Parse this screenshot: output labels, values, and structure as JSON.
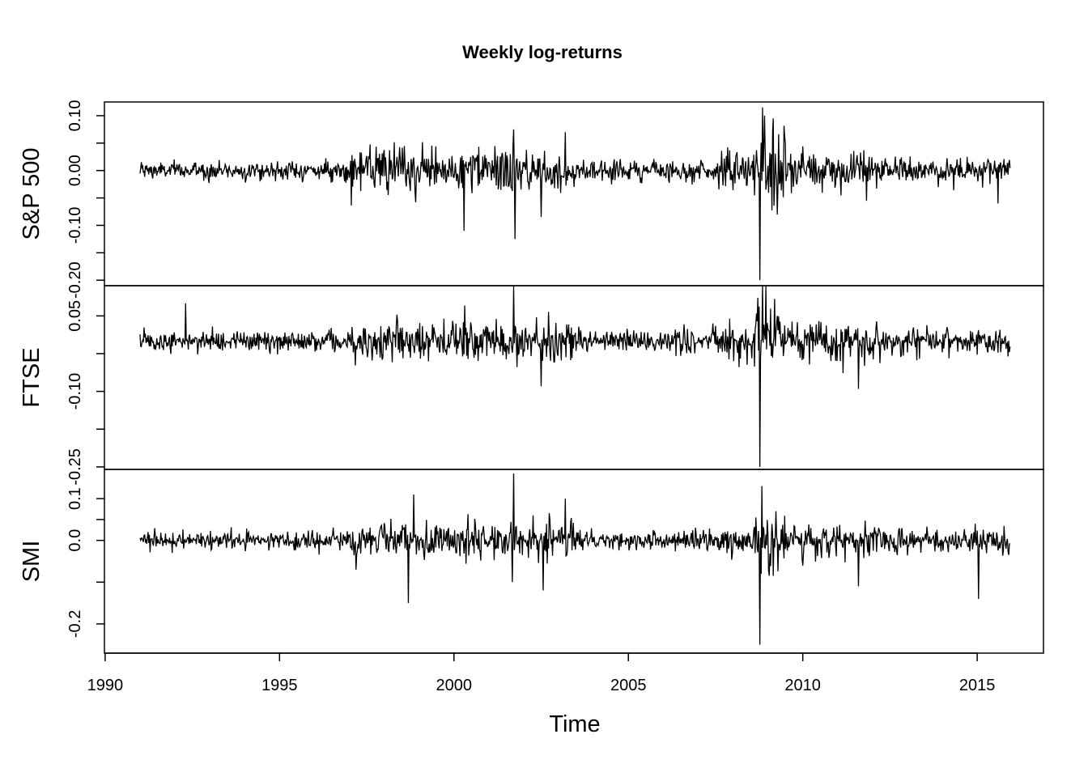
{
  "chart_data": {
    "type": "line",
    "title": "Weekly log-returns",
    "xlabel": "Time",
    "xlim": [
      1989.98,
      2016.9
    ],
    "x_ticks": [
      1990,
      1995,
      2000,
      2005,
      2010,
      2015
    ],
    "x_tick_labels": [
      "1990",
      "1995",
      "2000",
      "2005",
      "2010",
      "2015"
    ],
    "time_start": 1991.0,
    "time_end": 2015.95,
    "frequency": 52,
    "line_color": "#000000",
    "panels": [
      {
        "name": "S&P 500",
        "ylim": [
          -0.21,
          0.125
        ],
        "y_ticks": [
          0.1,
          0.0,
          -0.1,
          -0.2
        ],
        "y_tick_labels": [
          "0.10",
          "0.00",
          "-0.10",
          "-0.20"
        ],
        "baseline_vol": 0.012,
        "vol_regimes": [
          {
            "start": 1991.0,
            "end": 1997.0,
            "vol": 0.011
          },
          {
            "start": 1997.0,
            "end": 2003.5,
            "vol": 0.027
          },
          {
            "start": 2003.5,
            "end": 2007.4,
            "vol": 0.013
          },
          {
            "start": 2007.4,
            "end": 2008.6,
            "vol": 0.022
          },
          {
            "start": 2008.6,
            "end": 2009.5,
            "vol": 0.05
          },
          {
            "start": 2009.5,
            "end": 2012.3,
            "vol": 0.025
          },
          {
            "start": 2012.3,
            "end": 2016.0,
            "vol": 0.016
          }
        ],
        "extremes": [
          {
            "x": 2000.28,
            "y": -0.11
          },
          {
            "x": 2001.72,
            "y": 0.075
          },
          {
            "x": 2001.75,
            "y": -0.125
          },
          {
            "x": 2002.5,
            "y": -0.085
          },
          {
            "x": 2003.2,
            "y": 0.07
          },
          {
            "x": 2008.77,
            "y": -0.2
          },
          {
            "x": 2008.84,
            "y": 0.115
          },
          {
            "x": 2008.9,
            "y": 0.1
          },
          {
            "x": 2009.15,
            "y": 0.095
          },
          {
            "x": 2015.6,
            "y": -0.06
          }
        ]
      },
      {
        "name": "FTSE",
        "ylim": [
          -0.255,
          0.11
        ],
        "y_ticks": [
          0.05,
          -0.1,
          -0.25
        ],
        "y_tick_labels": [
          "0.05",
          "-0.10",
          "-0.25"
        ],
        "baseline_vol": 0.014,
        "vol_regimes": [
          {
            "start": 1991.0,
            "end": 1997.0,
            "vol": 0.014
          },
          {
            "start": 1997.0,
            "end": 2003.5,
            "vol": 0.028
          },
          {
            "start": 2003.5,
            "end": 2007.4,
            "vol": 0.014
          },
          {
            "start": 2007.4,
            "end": 2008.6,
            "vol": 0.024
          },
          {
            "start": 2008.6,
            "end": 2009.5,
            "vol": 0.055
          },
          {
            "start": 2009.5,
            "end": 2012.3,
            "vol": 0.025
          },
          {
            "start": 2012.3,
            "end": 2016.0,
            "vol": 0.018
          }
        ],
        "extremes": [
          {
            "x": 1992.3,
            "y": 0.075
          },
          {
            "x": 2001.72,
            "y": 0.11
          },
          {
            "x": 2002.5,
            "y": -0.09
          },
          {
            "x": 2008.77,
            "y": -0.25
          },
          {
            "x": 2008.84,
            "y": 0.13
          },
          {
            "x": 2008.95,
            "y": 0.11
          },
          {
            "x": 2011.6,
            "y": -0.095
          }
        ]
      },
      {
        "name": "SMI",
        "ylim": [
          -0.27,
          0.17
        ],
        "y_ticks": [
          0.1,
          0.0,
          -0.2
        ],
        "y_tick_labels": [
          "0.1",
          "0.0",
          "-0.2"
        ],
        "baseline_vol": 0.015,
        "vol_regimes": [
          {
            "start": 1991.0,
            "end": 1997.0,
            "vol": 0.014
          },
          {
            "start": 1997.0,
            "end": 2003.5,
            "vol": 0.03
          },
          {
            "start": 2003.5,
            "end": 2007.4,
            "vol": 0.015
          },
          {
            "start": 2007.4,
            "end": 2008.6,
            "vol": 0.025
          },
          {
            "start": 2008.6,
            "end": 2009.5,
            "vol": 0.05
          },
          {
            "start": 2009.5,
            "end": 2012.3,
            "vol": 0.025
          },
          {
            "start": 2012.3,
            "end": 2016.0,
            "vol": 0.02
          }
        ],
        "extremes": [
          {
            "x": 1998.7,
            "y": -0.15
          },
          {
            "x": 1998.85,
            "y": 0.11
          },
          {
            "x": 2001.72,
            "y": 0.16
          },
          {
            "x": 2001.68,
            "y": -0.1
          },
          {
            "x": 2002.55,
            "y": -0.12
          },
          {
            "x": 2003.2,
            "y": 0.1
          },
          {
            "x": 2008.77,
            "y": -0.25
          },
          {
            "x": 2008.82,
            "y": 0.13
          },
          {
            "x": 2009.15,
            "y": -0.085
          },
          {
            "x": 2011.6,
            "y": -0.11
          },
          {
            "x": 2015.03,
            "y": -0.14
          }
        ]
      }
    ]
  }
}
